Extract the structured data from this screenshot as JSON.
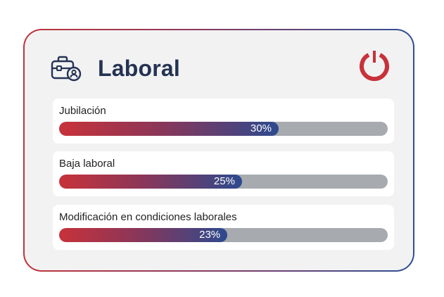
{
  "header": {
    "title": "Laboral",
    "icon": "briefcase-person-icon",
    "logo": "power-icon"
  },
  "colors": {
    "red": "#c8323a",
    "blue": "#2d4a8e",
    "track": "#a7abaf",
    "title": "#243253"
  },
  "items": [
    {
      "label": "Jubilación",
      "percent_text": "30%",
      "percent": 30
    },
    {
      "label": "Baja laboral",
      "percent_text": "25%",
      "percent": 25
    },
    {
      "label": "Modificación en condiciones laborales",
      "percent_text": "23%",
      "percent": 23
    }
  ]
}
